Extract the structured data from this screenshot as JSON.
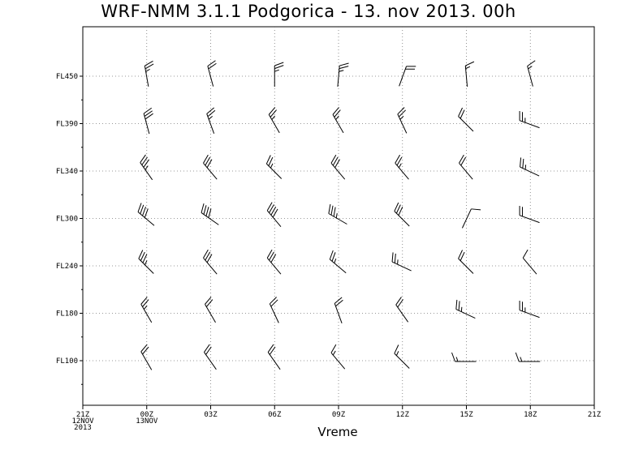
{
  "chart_data": {
    "type": "wind-barb",
    "title": "WRF-NMM 3.1.1 Podgorica - 13. nov 2013. 00h",
    "xlabel": "Vreme",
    "ylabel": "",
    "x_ticks": [
      {
        "label": "21Z",
        "sub1": "12NOV",
        "sub2": "2013"
      },
      {
        "label": "00Z",
        "sub1": "13NOV",
        "sub2": ""
      },
      {
        "label": "03Z",
        "sub1": "",
        "sub2": ""
      },
      {
        "label": "06Z",
        "sub1": "",
        "sub2": ""
      },
      {
        "label": "09Z",
        "sub1": "",
        "sub2": ""
      },
      {
        "label": "12Z",
        "sub1": "",
        "sub2": ""
      },
      {
        "label": "15Z",
        "sub1": "",
        "sub2": ""
      },
      {
        "label": "18Z",
        "sub1": "",
        "sub2": ""
      },
      {
        "label": "21Z",
        "sub1": "",
        "sub2": ""
      }
    ],
    "y_ticks": [
      "FL450",
      "FL390",
      "FL340",
      "FL300",
      "FL240",
      "FL180",
      "FL100"
    ],
    "grid": true,
    "series": [
      {
        "level": "FL450",
        "dir_deg": [
          350,
          345,
          0,
          5,
          20,
          355,
          345
        ],
        "speed_kt": [
          25,
          20,
          25,
          25,
          20,
          15,
          15
        ]
      },
      {
        "level": "FL390",
        "dir_deg": [
          345,
          340,
          330,
          330,
          335,
          315,
          290
        ],
        "speed_kt": [
          30,
          25,
          25,
          25,
          25,
          20,
          25
        ]
      },
      {
        "level": "FL340",
        "dir_deg": [
          325,
          320,
          315,
          320,
          320,
          320,
          295
        ],
        "speed_kt": [
          35,
          30,
          25,
          30,
          25,
          20,
          25
        ]
      },
      {
        "level": "FL300",
        "dir_deg": [
          310,
          305,
          320,
          300,
          315,
          25,
          290
        ],
        "speed_kt": [
          40,
          40,
          40,
          35,
          30,
          10,
          20
        ]
      },
      {
        "level": "FL240",
        "dir_deg": [
          315,
          320,
          320,
          310,
          295,
          315,
          320
        ],
        "speed_kt": [
          35,
          30,
          30,
          25,
          25,
          20,
          10
        ]
      },
      {
        "level": "FL180",
        "dir_deg": [
          330,
          330,
          335,
          340,
          325,
          295,
          290
        ],
        "speed_kt": [
          25,
          20,
          20,
          20,
          20,
          25,
          25
        ]
      },
      {
        "level": "FL100",
        "dir_deg": [
          330,
          325,
          325,
          320,
          315,
          270,
          270
        ],
        "speed_kt": [
          20,
          20,
          20,
          15,
          15,
          15,
          15
        ]
      }
    ]
  }
}
